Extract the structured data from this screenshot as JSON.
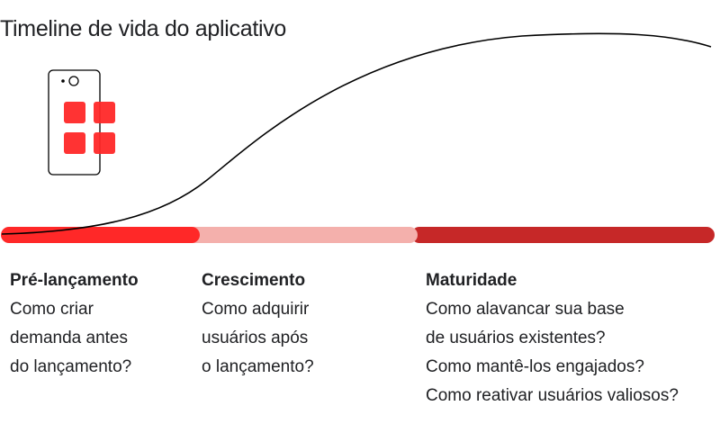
{
  "title": "Timeline de vida do aplicativo",
  "colors": {
    "prelaunch": "#ff2828",
    "growth": "#f4b0ac",
    "maturity": "#c62828",
    "app_tiles": "#ff2828"
  },
  "icons": {
    "phone": "phone-with-app-tiles-icon"
  },
  "phases": [
    {
      "heading": "Pré-lançamento",
      "lines": [
        "Como criar",
        "demanda antes",
        "do lançamento?"
      ]
    },
    {
      "heading": "Crescimento",
      "lines": [
        "Como adquirir",
        "usuários após",
        "o lançamento?"
      ]
    },
    {
      "heading": "Maturidade",
      "lines": [
        "Como alavancar sua base",
        "de usuários existentes?",
        "Como mantê-los engajados?",
        "Como reativar usuários valiosos?"
      ]
    }
  ]
}
